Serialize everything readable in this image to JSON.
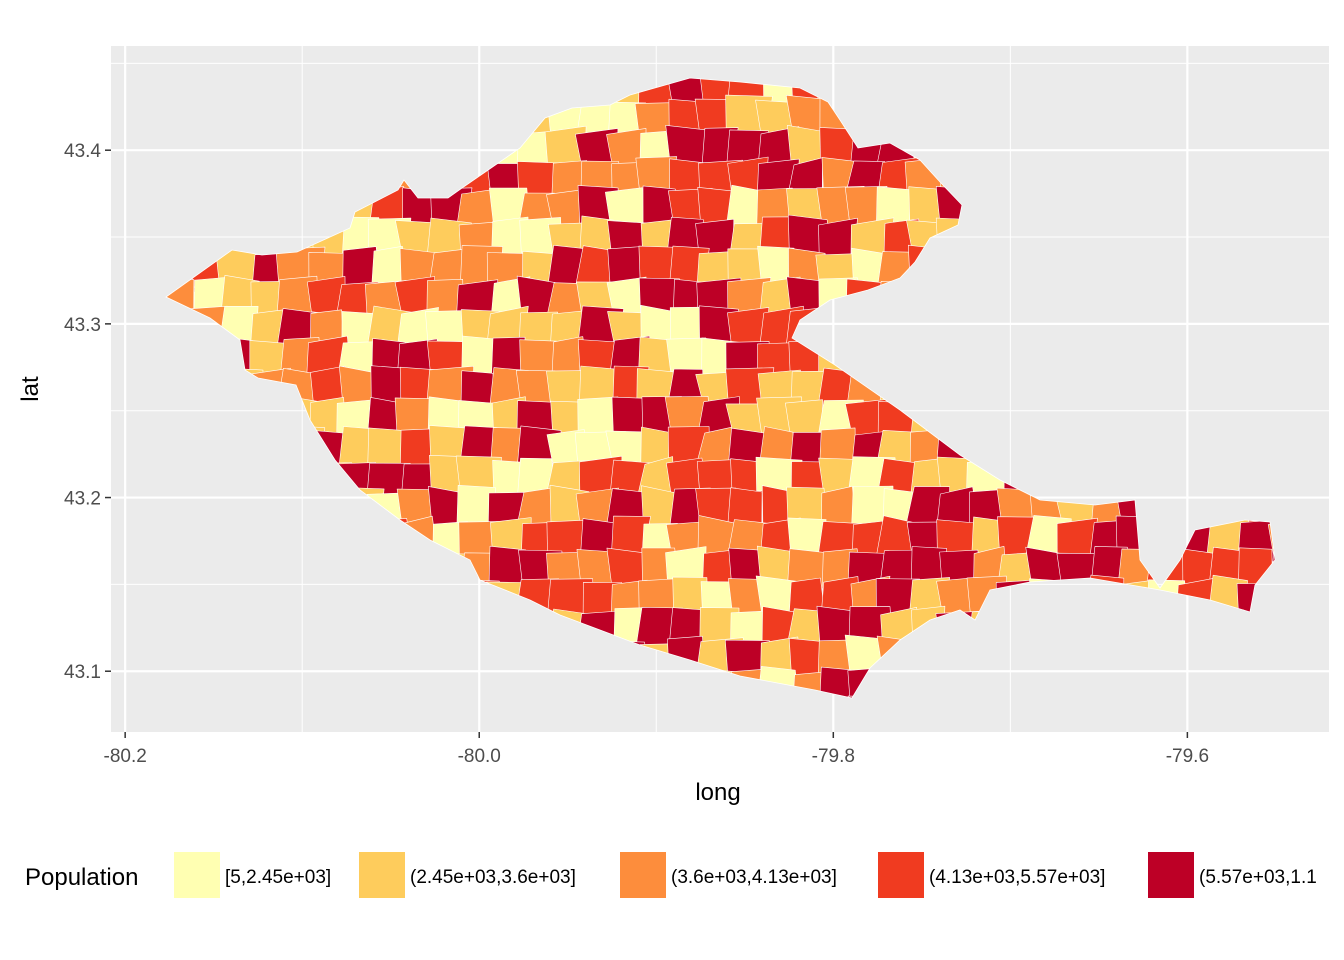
{
  "chart_data": {
    "type": "choropleth",
    "x_label": "long",
    "y_label": "lat",
    "x_ticks": [
      -80.2,
      -80.0,
      -79.8,
      -79.6
    ],
    "x_tick_labels": [
      "-80.2",
      "-80.0",
      "-79.8",
      "-79.6"
    ],
    "y_ticks": [
      43.1,
      43.2,
      43.3,
      43.4
    ],
    "y_tick_labels": [
      "43.1",
      "43.2",
      "43.3",
      "43.4"
    ],
    "xlim": [
      -80.208,
      -79.52
    ],
    "ylim": [
      43.065,
      43.46
    ],
    "grid": true,
    "legend": {
      "title": "Population",
      "position": "bottom",
      "entries": [
        {
          "label": "[5,2.45e+03]",
          "color": "#FFFFB2"
        },
        {
          "label": "(2.45e+03,3.6e+03]",
          "color": "#FECC5C"
        },
        {
          "label": "(3.6e+03,4.13e+03]",
          "color": "#FD8D3C"
        },
        {
          "label": "(4.13e+03,5.57e+03]",
          "color": "#F03B20"
        },
        {
          "label": "(5.57e+03,1.1",
          "color": "#BD0026"
        }
      ]
    },
    "colors": {
      "panel_background": "#EBEBEB",
      "grid_major": "#FFFFFF",
      "tract_border": "#FFFFFF"
    }
  }
}
